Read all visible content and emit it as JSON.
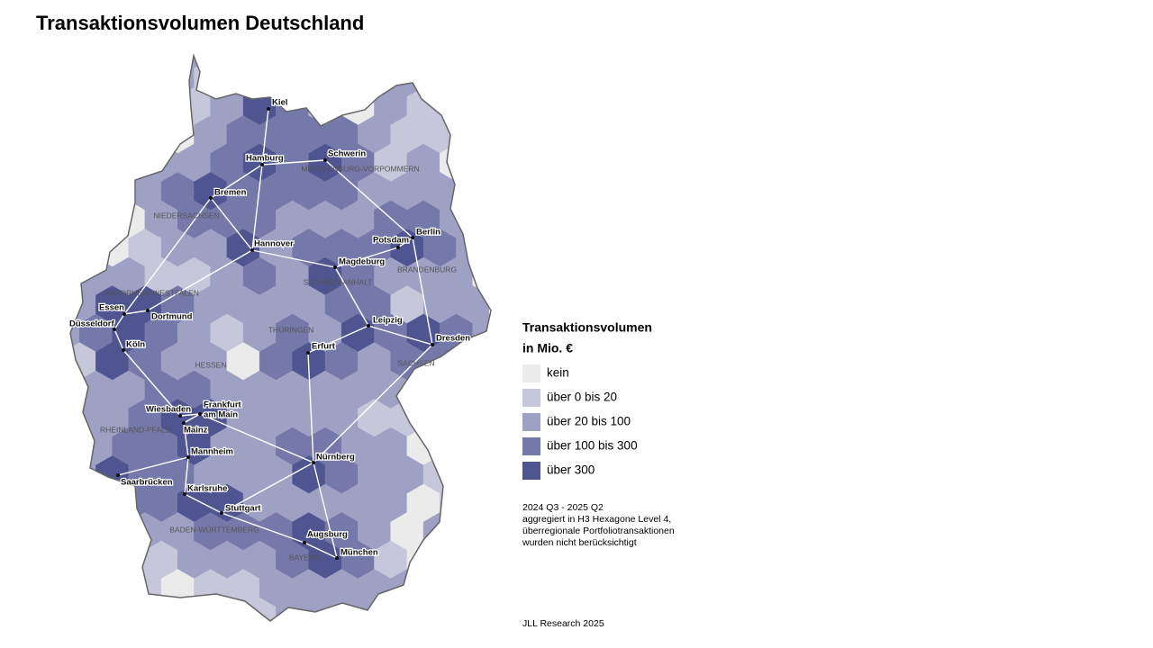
{
  "title": "Transaktionsvolumen Deutschland",
  "map": {
    "cities": [
      "Kiel",
      "Hamburg",
      "Schwerin",
      "Bremen",
      "Hannover",
      "Berlin",
      "Potsdam",
      "Magdeburg",
      "Essen",
      "Dortmund",
      "Düsseldorf",
      "Köln",
      "Leipzig",
      "Dresden",
      "Erfurt",
      [
        "Frankfurt",
        "am Main"
      ],
      "Wiesbaden",
      "Mainz",
      "Mannheim",
      "Nürnberg",
      "Saarbrücken",
      "Karlsruhe",
      "Stuttgart",
      "Augsburg",
      "München"
    ],
    "states": [
      "NIEDERSACHSEN",
      "MECKLENBURG-VORPOMMERN",
      "NORDRHEIN-WESTFALEN",
      "SACHSEN-ANHALT",
      "BRANDENBURG",
      "THÜRINGEN",
      "HESSEN",
      "SACHSEN",
      "RHEINLAND-PFALZ",
      "BADEN-WÜRTTEMBERG",
      "BAYERN"
    ]
  },
  "legend": {
    "title": [
      "Transaktionsvolumen",
      "in Mio. €"
    ],
    "items": [
      {
        "label": "kein",
        "color": "#ebebeb"
      },
      {
        "label": "über 0 bis 20",
        "color": "#c6c7da"
      },
      {
        "label": "über 20 bis 100",
        "color": "#9ea0c4"
      },
      {
        "label": "über 100 bis 300",
        "color": "#7579a9"
      },
      {
        "label": "über 300",
        "color": "#4e5590"
      }
    ]
  },
  "note": [
    "2024 Q3 - 2025 Q2",
    "aggregiert in H3 Hexagone Level 4,",
    "überregionale Portfoliotransaktionen",
    "wurden nicht berücksichtigt"
  ],
  "source": "JLL Research 2025"
}
